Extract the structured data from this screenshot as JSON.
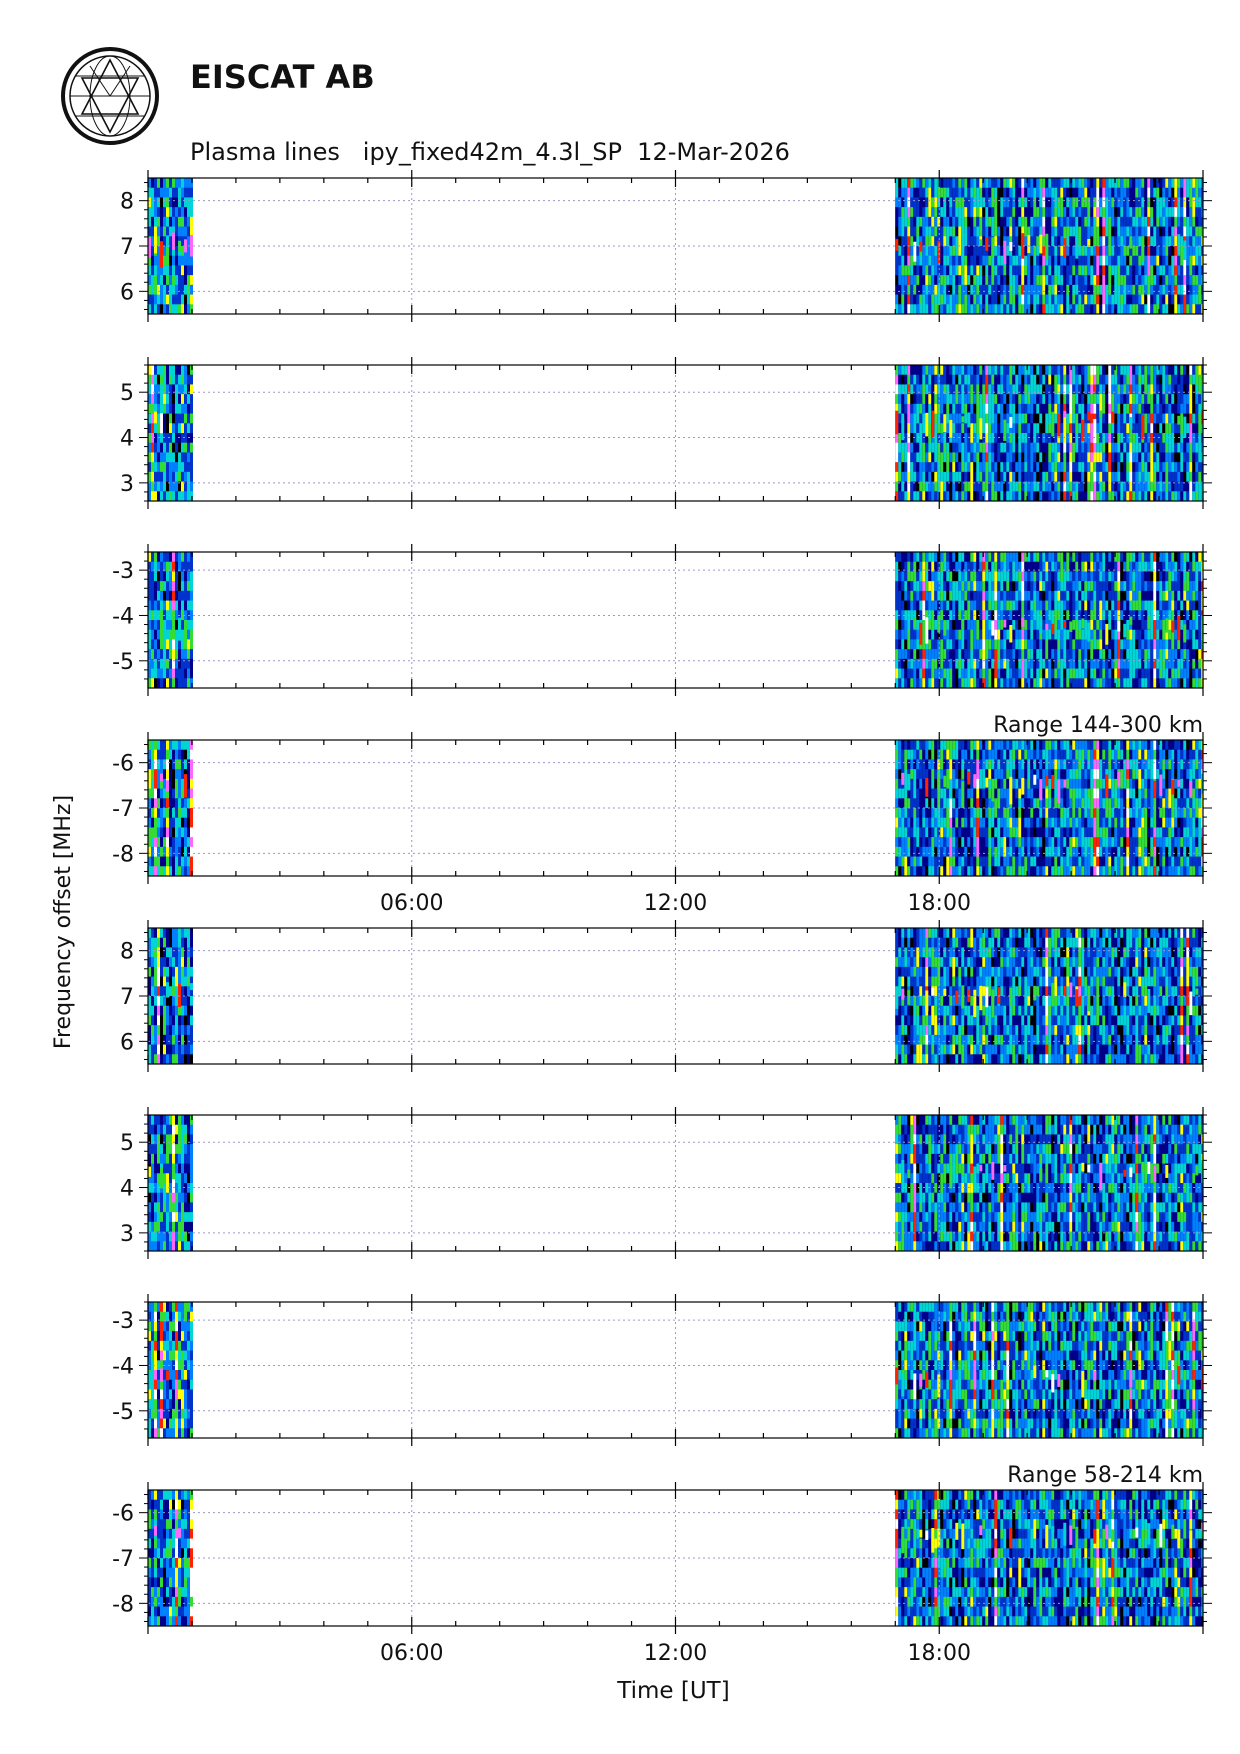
{
  "header": {
    "organization": "EISCAT AB",
    "subtitle": "Plasma lines   ipy_fixed42m_4.3l_SP  12-Mar-2026"
  },
  "chart_data": {
    "type": "heatmap",
    "ylabel": "Frequency offset [MHz]",
    "xlabel": "Time [UT]",
    "x_range_hours": [
      0,
      24
    ],
    "x_ticks": [
      {
        "hours": 6,
        "label": "06:00"
      },
      {
        "hours": 12,
        "label": "12:00"
      },
      {
        "hours": 18,
        "label": "18:00"
      }
    ],
    "data_intervals_hours": [
      [
        0,
        1
      ],
      [
        17,
        24
      ]
    ],
    "grid": true,
    "panels": [
      {
        "group": 1,
        "ylim": [
          5.5,
          8.5
        ],
        "ticks": [
          {
            "v": 6,
            "label": "6"
          },
          {
            "v": 7,
            "label": "7"
          },
          {
            "v": 8,
            "label": "8"
          }
        ],
        "line_mhz": 7.0
      },
      {
        "group": 1,
        "ylim": [
          2.6,
          5.6
        ],
        "ticks": [
          {
            "v": 3,
            "label": "3"
          },
          {
            "v": 4,
            "label": "4"
          },
          {
            "v": 5,
            "label": "5"
          }
        ],
        "line_mhz": 4.3
      },
      {
        "group": 1,
        "ylim": [
          -5.6,
          -2.6
        ],
        "ticks": [
          {
            "v": -3,
            "label": "-3"
          },
          {
            "v": -4,
            "label": "-4"
          },
          {
            "v": -5,
            "label": "-5"
          }
        ],
        "line_mhz": -4.3
      },
      {
        "group": 1,
        "ylim": [
          -8.5,
          -5.5
        ],
        "ticks": [
          {
            "v": -6,
            "label": "-6"
          },
          {
            "v": -7,
            "label": "-7"
          },
          {
            "v": -8,
            "label": "-8"
          }
        ],
        "line_mhz": -6.5,
        "annotation": "Range 144-300 km",
        "show_time_labels": true
      },
      {
        "group": 2,
        "ylim": [
          5.5,
          8.5
        ],
        "ticks": [
          {
            "v": 6,
            "label": "6"
          },
          {
            "v": 7,
            "label": "7"
          },
          {
            "v": 8,
            "label": "8"
          }
        ],
        "line_mhz": 7.0
      },
      {
        "group": 2,
        "ylim": [
          2.6,
          5.6
        ],
        "ticks": [
          {
            "v": 3,
            "label": "3"
          },
          {
            "v": 4,
            "label": "4"
          },
          {
            "v": 5,
            "label": "5"
          }
        ],
        "line_mhz": 4.3
      },
      {
        "group": 2,
        "ylim": [
          -5.6,
          -2.6
        ],
        "ticks": [
          {
            "v": -3,
            "label": "-3"
          },
          {
            "v": -4,
            "label": "-4"
          },
          {
            "v": -5,
            "label": "-5"
          }
        ],
        "line_mhz": -4.3
      },
      {
        "group": 2,
        "ylim": [
          -8.5,
          -5.5
        ],
        "ticks": [
          {
            "v": -6,
            "label": "-6"
          },
          {
            "v": -7,
            "label": "-7"
          },
          {
            "v": -8,
            "label": "-8"
          }
        ],
        "line_mhz": -6.5,
        "annotation": "Range 58-214 km",
        "show_time_labels": true
      }
    ],
    "colormap": [
      "#000000",
      "#00008b",
      "#0033cc",
      "#0080ff",
      "#00d4d4",
      "#33dd33",
      "#ffff00",
      "#ff2200",
      "#ff66ff",
      "#ffffff"
    ]
  }
}
